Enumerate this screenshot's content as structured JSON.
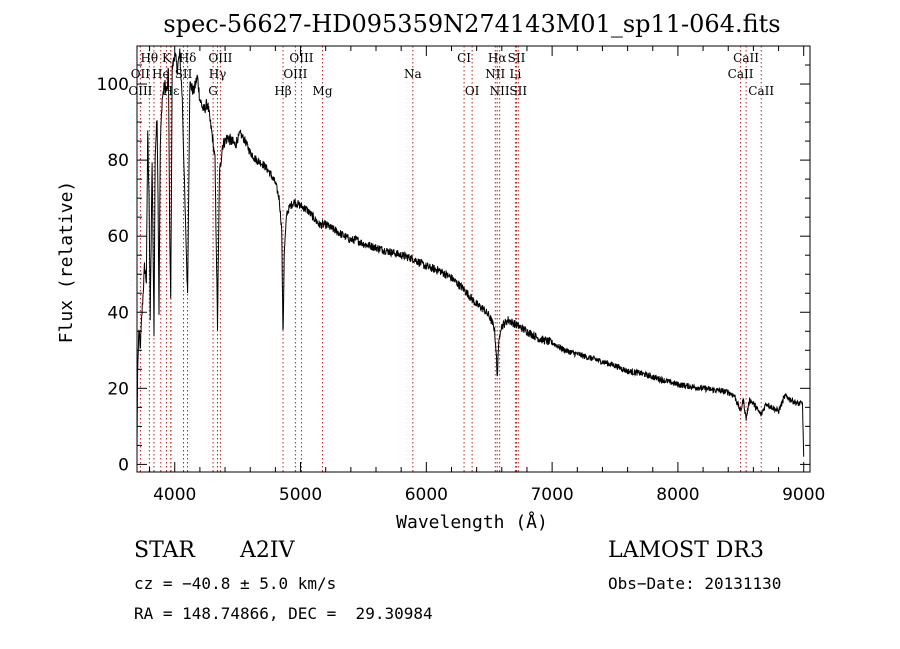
{
  "chart_data": {
    "type": "line",
    "title": "spec-56627-HD095359N274143M01_sp11-064.fits",
    "xlabel": "Wavelength (Å)",
    "ylabel": "Flux (relative)",
    "xlim": [
      3700,
      9050
    ],
    "ylim": [
      -2,
      110
    ],
    "xticks": [
      4000,
      5000,
      6000,
      7000,
      8000,
      9000
    ],
    "yticks": [
      0,
      20,
      40,
      60,
      80,
      100
    ],
    "spectrum_anchors": [
      [
        3700,
        4
      ],
      [
        3705,
        24
      ],
      [
        3715,
        36
      ],
      [
        3725,
        30
      ],
      [
        3740,
        40
      ],
      [
        3760,
        52
      ],
      [
        3775,
        48
      ],
      [
        3785,
        88
      ],
      [
        3795,
        72
      ],
      [
        3805,
        38
      ],
      [
        3820,
        80
      ],
      [
        3835,
        35
      ],
      [
        3845,
        82
      ],
      [
        3860,
        92
      ],
      [
        3870,
        60
      ],
      [
        3875,
        40
      ],
      [
        3885,
        84
      ],
      [
        3900,
        96
      ],
      [
        3920,
        100
      ],
      [
        3940,
        98
      ],
      [
        3950,
        104
      ],
      [
        3960,
        60
      ],
      [
        3968,
        44
      ],
      [
        3980,
        104
      ],
      [
        4000,
        108
      ],
      [
        4020,
        104
      ],
      [
        4040,
        108
      ],
      [
        4060,
        96
      ],
      [
        4080,
        70
      ],
      [
        4102,
        44
      ],
      [
        4120,
        100
      ],
      [
        4150,
        98
      ],
      [
        4180,
        102
      ],
      [
        4200,
        96
      ],
      [
        4230,
        93
      ],
      [
        4260,
        95
      ],
      [
        4300,
        86
      ],
      [
        4320,
        80
      ],
      [
        4340,
        36
      ],
      [
        4355,
        76
      ],
      [
        4380,
        84
      ],
      [
        4420,
        86
      ],
      [
        4480,
        84
      ],
      [
        4520,
        87
      ],
      [
        4560,
        85
      ],
      [
        4600,
        82
      ],
      [
        4650,
        80
      ],
      [
        4700,
        79
      ],
      [
        4750,
        77
      ],
      [
        4800,
        74
      ],
      [
        4830,
        70
      ],
      [
        4850,
        62
      ],
      [
        4861,
        33
      ],
      [
        4870,
        55
      ],
      [
        4890,
        66
      ],
      [
        4920,
        68
      ],
      [
        4950,
        69
      ],
      [
        5000,
        68
      ],
      [
        5050,
        67
      ],
      [
        5100,
        65
      ],
      [
        5150,
        63
      ],
      [
        5200,
        63
      ],
      [
        5250,
        62
      ],
      [
        5300,
        61
      ],
      [
        5350,
        60
      ],
      [
        5400,
        59
      ],
      [
        5450,
        59
      ],
      [
        5500,
        58
      ],
      [
        5600,
        57
      ],
      [
        5700,
        56
      ],
      [
        5800,
        55
      ],
      [
        5900,
        54
      ],
      [
        6000,
        52
      ],
      [
        6100,
        51
      ],
      [
        6200,
        49
      ],
      [
        6300,
        46
      ],
      [
        6350,
        44
      ],
      [
        6400,
        42
      ],
      [
        6450,
        41
      ],
      [
        6500,
        39
      ],
      [
        6540,
        36
      ],
      [
        6555,
        30
      ],
      [
        6563,
        22
      ],
      [
        6572,
        30
      ],
      [
        6590,
        36
      ],
      [
        6650,
        38
      ],
      [
        6700,
        37
      ],
      [
        6750,
        36
      ],
      [
        6800,
        35
      ],
      [
        6900,
        33
      ],
      [
        7000,
        32
      ],
      [
        7100,
        30
      ],
      [
        7200,
        29
      ],
      [
        7300,
        28
      ],
      [
        7400,
        27
      ],
      [
        7500,
        26
      ],
      [
        7600,
        24.5
      ],
      [
        7700,
        24
      ],
      [
        7800,
        23
      ],
      [
        7900,
        22
      ],
      [
        8000,
        21
      ],
      [
        8100,
        20.5
      ],
      [
        8200,
        20
      ],
      [
        8300,
        19.5
      ],
      [
        8400,
        19
      ],
      [
        8450,
        18
      ],
      [
        8498,
        14
      ],
      [
        8520,
        17
      ],
      [
        8542,
        12
      ],
      [
        8570,
        17
      ],
      [
        8600,
        16
      ],
      [
        8640,
        14
      ],
      [
        8662,
        13
      ],
      [
        8700,
        16
      ],
      [
        8750,
        15
      ],
      [
        8800,
        14
      ],
      [
        8850,
        18
      ],
      [
        8900,
        17
      ],
      [
        8950,
        16
      ],
      [
        8990,
        16
      ],
      [
        9000,
        2
      ]
    ],
    "spectral_lines": [
      {
        "label": "Hθ",
        "wavelength": 3798,
        "row": 1
      },
      {
        "label": "K",
        "wavelength": 3934,
        "row": 1
      },
      {
        "label": "Hδ",
        "wavelength": 4102,
        "row": 1
      },
      {
        "label": "OIII",
        "wavelength": 4363,
        "row": 1
      },
      {
        "label": "OIII",
        "wavelength": 5007,
        "row": 1
      },
      {
        "label": "CI",
        "wavelength": 6300,
        "row": 1
      },
      {
        "label": "Hα",
        "wavelength": 6563,
        "row": 1
      },
      {
        "label": "SII",
        "wavelength": 6717,
        "row": 1
      },
      {
        "label": "CaII",
        "wavelength": 8542,
        "row": 1
      },
      {
        "label": "OII",
        "wavelength": 3727,
        "row": 2
      },
      {
        "label": "He",
        "wavelength": 3889,
        "row": 2
      },
      {
        "label": "SII",
        "wavelength": 4070,
        "row": 2
      },
      {
        "label": "Hγ",
        "wavelength": 4340,
        "row": 2
      },
      {
        "label": "OIII",
        "wavelength": 4959,
        "row": 2
      },
      {
        "label": "Na",
        "wavelength": 5893,
        "row": 2
      },
      {
        "label": "NII",
        "wavelength": 6548,
        "row": 2
      },
      {
        "label": "Li",
        "wavelength": 6708,
        "row": 2
      },
      {
        "label": "CaII",
        "wavelength": 8498,
        "row": 2
      },
      {
        "label": "OIII",
        "wavelength": 3727,
        "row": 3
      },
      {
        "label": "Hε",
        "wavelength": 3970,
        "row": 3
      },
      {
        "label": "G",
        "wavelength": 4305,
        "row": 3
      },
      {
        "label": "Hβ",
        "wavelength": 4861,
        "row": 3
      },
      {
        "label": "Mg",
        "wavelength": 5175,
        "row": 3
      },
      {
        "label": "OI",
        "wavelength": 6364,
        "row": 3
      },
      {
        "label": "NII",
        "wavelength": 6583,
        "row": 3
      },
      {
        "label": "SII",
        "wavelength": 6731,
        "row": 3
      },
      {
        "label": "CaII",
        "wavelength": 8662,
        "row": 3
      }
    ],
    "line_markers": [
      3727,
      3798,
      3835,
      3889,
      3934,
      3968,
      3970,
      4070,
      4102,
      4305,
      4340,
      4363,
      4861,
      4959,
      5007,
      5175,
      5893,
      6300,
      6364,
      6548,
      6563,
      6583,
      6708,
      6717,
      6731,
      8498,
      8542,
      8662
    ]
  },
  "info": {
    "object_type": "STAR",
    "subclass": "A2IV",
    "survey": "LAMOST DR3",
    "redshift": "cz = −40.8 ± 5.0 km/s",
    "obs_date": "Obs−Date: 20131130",
    "coords": "RA = 148.74866, DEC =  29.30984"
  },
  "colors": {
    "line": "#000000",
    "marker": "#b22222",
    "background": "#ffffff"
  }
}
